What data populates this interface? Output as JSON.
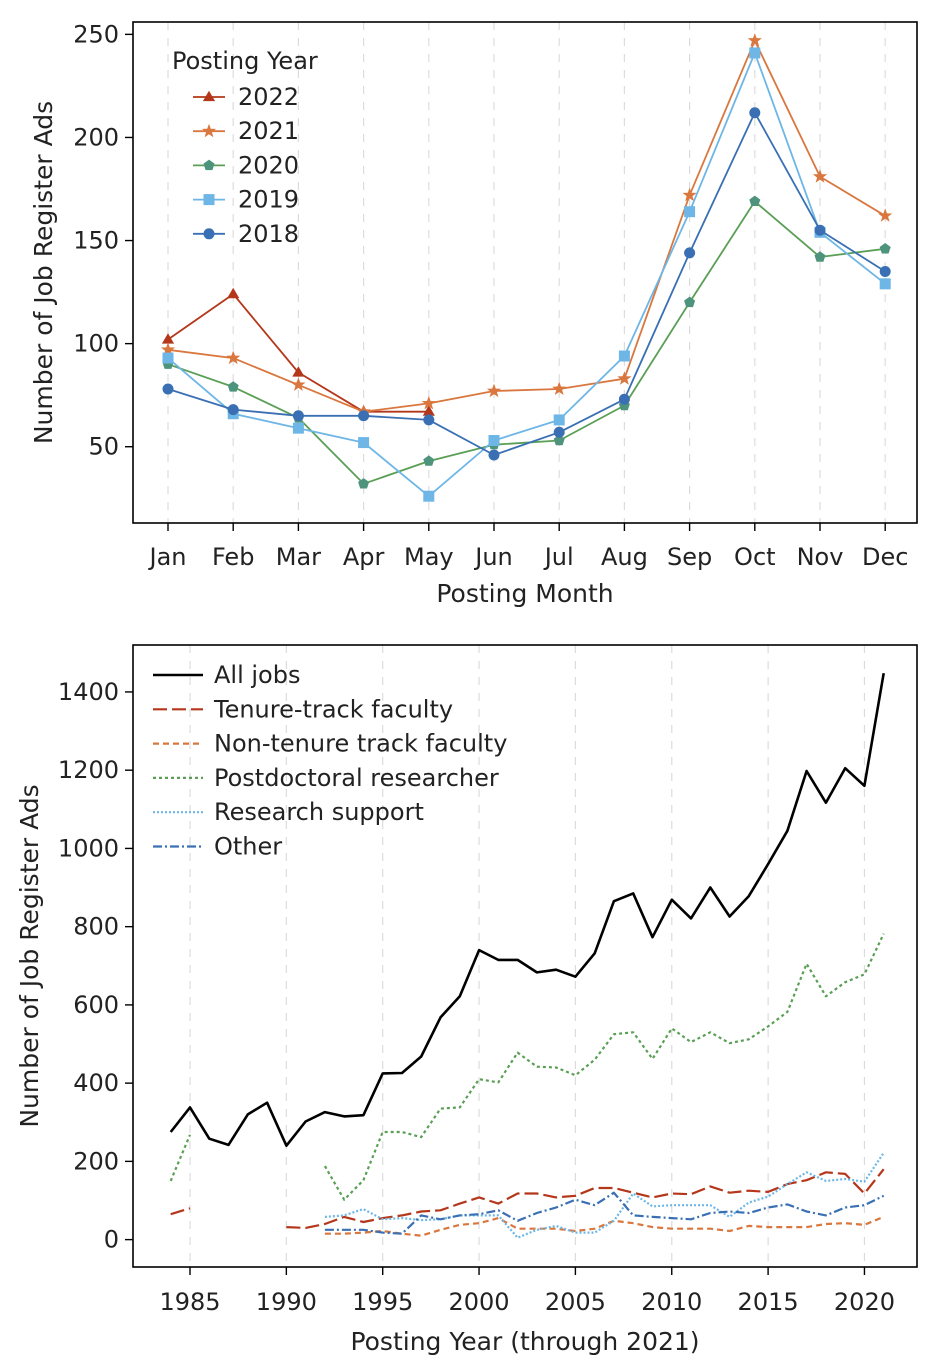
{
  "chart_data": [
    {
      "type": "line",
      "title": "",
      "xlabel": "Posting Month",
      "ylabel": "Number of Job Register Ads",
      "categories": [
        "Jan",
        "Feb",
        "Mar",
        "Apr",
        "May",
        "Jun",
        "Jul",
        "Aug",
        "Sep",
        "Oct",
        "Nov",
        "Dec"
      ],
      "ylim": [
        13,
        256
      ],
      "yticks": [
        50,
        100,
        150,
        200,
        250
      ],
      "legend_title": "Posting Year",
      "legend_location": "top-left",
      "series": [
        {
          "name": "2022",
          "color": "#b5371b",
          "marker": "triangle",
          "values": [
            102,
            124,
            86,
            67,
            67,
            null,
            null,
            null,
            null,
            null,
            null,
            null
          ]
        },
        {
          "name": "2021",
          "color": "#d9773e",
          "marker": "star",
          "values": [
            97,
            93,
            80,
            67,
            71,
            77,
            78,
            83,
            172,
            247,
            181,
            162
          ]
        },
        {
          "name": "2020",
          "color": "#5b9f56",
          "marker_color": "#4e937b",
          "marker": "pentagon",
          "values": [
            90,
            79,
            64,
            32,
            43,
            51,
            53,
            70,
            120,
            169,
            142,
            146
          ]
        },
        {
          "name": "2019",
          "color": "#6db6e6",
          "marker": "square",
          "values": [
            93,
            66,
            59,
            52,
            26,
            53,
            63,
            94,
            164,
            241,
            154,
            129
          ]
        },
        {
          "name": "2018",
          "color": "#3a70b3",
          "marker": "circle",
          "values": [
            78,
            68,
            65,
            65,
            63,
            46,
            57,
            73,
            144,
            212,
            155,
            135
          ]
        }
      ]
    },
    {
      "type": "line",
      "title": "",
      "xlabel": "Posting Year (through 2021)",
      "ylabel": "Number of Job Register Ads",
      "xlim": [
        1982.5,
        2022.8
      ],
      "ylim": [
        -70,
        1520
      ],
      "xticks": [
        1985,
        1990,
        1995,
        2000,
        2005,
        2010,
        2015,
        2020
      ],
      "yticks": [
        0,
        200,
        400,
        600,
        800,
        1000,
        1200,
        1400
      ],
      "legend_location": "top-left",
      "x": [
        1984,
        1985,
        1986,
        1987,
        1988,
        1989,
        1990,
        1991,
        1992,
        1993,
        1994,
        1995,
        1996,
        1997,
        1998,
        1999,
        2000,
        2001,
        2002,
        2003,
        2004,
        2005,
        2006,
        2007,
        2008,
        2009,
        2010,
        2011,
        2012,
        2013,
        2014,
        2015,
        2016,
        2017,
        2018,
        2019,
        2020,
        2021
      ],
      "series": [
        {
          "name": "All jobs",
          "color": "#000000",
          "dash": "solid",
          "values": [
            275,
            338,
            258,
            242,
            320,
            350,
            240,
            302,
            326,
            315,
            318,
            425,
            426,
            468,
            568,
            622,
            740,
            715,
            715,
            683,
            690,
            672,
            732,
            865,
            885,
            773,
            869,
            821,
            900,
            826,
            878,
            960,
            1045,
            1198,
            1117,
            1205,
            1160,
            1448
          ]
        },
        {
          "name": "Tenure-track faculty",
          "color": "#b5371b",
          "dash": "long",
          "values": [
            65,
            80,
            null,
            null,
            null,
            null,
            32,
            30,
            40,
            58,
            45,
            55,
            62,
            72,
            75,
            92,
            108,
            92,
            118,
            118,
            108,
            112,
            132,
            132,
            120,
            108,
            118,
            116,
            136,
            120,
            125,
            122,
            142,
            152,
            172,
            168,
            118,
            180
          ]
        },
        {
          "name": "Non-tenure track faculty",
          "color": "#d9773e",
          "dash": "short",
          "values": [
            null,
            null,
            null,
            null,
            null,
            null,
            null,
            null,
            15,
            15,
            18,
            22,
            15,
            10,
            25,
            38,
            42,
            55,
            28,
            28,
            28,
            22,
            28,
            48,
            42,
            32,
            28,
            28,
            28,
            22,
            35,
            32,
            32,
            32,
            40,
            42,
            38,
            58
          ]
        },
        {
          "name": "Postdoctoral researcher",
          "color": "#5b9f56",
          "dash": "dotted",
          "values": [
            150,
            268,
            null,
            null,
            null,
            null,
            null,
            null,
            188,
            102,
            152,
            275,
            275,
            262,
            335,
            338,
            410,
            402,
            478,
            442,
            440,
            420,
            460,
            525,
            530,
            462,
            540,
            505,
            530,
            502,
            512,
            545,
            582,
            705,
            622,
            658,
            678,
            782
          ]
        },
        {
          "name": "Research support",
          "color": "#6db6e6",
          "dash": "fine",
          "values": [
            null,
            null,
            null,
            null,
            null,
            null,
            null,
            null,
            58,
            62,
            78,
            52,
            55,
            50,
            52,
            62,
            62,
            62,
            5,
            25,
            35,
            18,
            18,
            48,
            118,
            85,
            88,
            88,
            88,
            58,
            95,
            110,
            142,
            172,
            150,
            155,
            148,
            222
          ]
        },
        {
          "name": "Other",
          "color": "#3a70b3",
          "dash": "dashdot",
          "values": [
            null,
            null,
            null,
            null,
            null,
            null,
            null,
            null,
            25,
            25,
            25,
            18,
            15,
            62,
            52,
            62,
            65,
            75,
            48,
            68,
            82,
            102,
            88,
            120,
            62,
            58,
            55,
            52,
            68,
            72,
            68,
            82,
            90,
            72,
            62,
            82,
            88,
            112
          ]
        }
      ]
    }
  ]
}
